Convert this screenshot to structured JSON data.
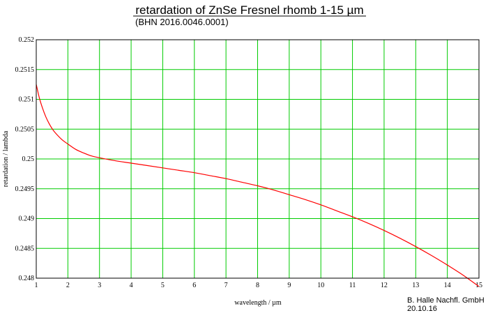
{
  "colors": {
    "grid": "#00cc00",
    "curve": "#ff0000",
    "frame": "#000000",
    "background": "#ffffff"
  },
  "chart_data": {
    "type": "line",
    "title": "retardation of ZnSe Fresnel rhomb 1-15 µm",
    "subtitle": "(BHN 2016.0046.0001)",
    "xlabel": "wavelength / µm",
    "ylabel": "retardation / lambda",
    "xlim": [
      1,
      15
    ],
    "ylim": [
      0.248,
      0.252
    ],
    "x_ticks": [
      1,
      2,
      3,
      4,
      5,
      6,
      7,
      8,
      9,
      10,
      11,
      12,
      13,
      14,
      15
    ],
    "x_tick_labels": [
      "1",
      "2",
      "3",
      "4",
      "5",
      "6",
      "7",
      "8",
      "9",
      "10",
      "11",
      "12",
      "13",
      "14",
      "15"
    ],
    "y_ticks": [
      0.248,
      0.2485,
      0.249,
      0.2495,
      0.25,
      0.2505,
      0.251,
      0.2515,
      0.252
    ],
    "y_tick_labels": [
      "0.248",
      "0.2485",
      "0.249",
      "0.2495",
      "0.25",
      "0.2505",
      "0.251",
      "0.2515",
      "0.252"
    ],
    "grid": true,
    "series": [
      {
        "x": [
          1.0,
          1.1,
          1.2,
          1.3,
          1.4,
          1.5,
          1.6,
          1.8,
          2.0,
          2.25,
          2.5,
          2.75,
          3.0,
          3.5,
          4.0,
          4.5,
          5.0,
          5.5,
          6.0,
          6.5,
          7.0,
          7.5,
          8.0,
          8.5,
          9.0,
          9.5,
          10.0,
          10.5,
          11.0,
          11.5,
          12.0,
          12.5,
          13.0,
          13.5,
          14.0,
          14.5,
          15.0
        ],
        "y": [
          0.25125,
          0.25102,
          0.25085,
          0.25071,
          0.2506,
          0.25051,
          0.25044,
          0.25033,
          0.25025,
          0.25016,
          0.2501,
          0.25005,
          0.25002,
          0.24997,
          0.24993,
          0.24989,
          0.24985,
          0.24981,
          0.24977,
          0.24972,
          0.24967,
          0.24961,
          0.24955,
          0.24948,
          0.2494,
          0.24932,
          0.24923,
          0.24913,
          0.24903,
          0.24892,
          0.2488,
          0.24867,
          0.24853,
          0.24838,
          0.24822,
          0.24805,
          0.24786
        ]
      }
    ]
  },
  "footer": {
    "company": "B. Halle Nachfl. GmbH",
    "date": "20.10.16"
  }
}
